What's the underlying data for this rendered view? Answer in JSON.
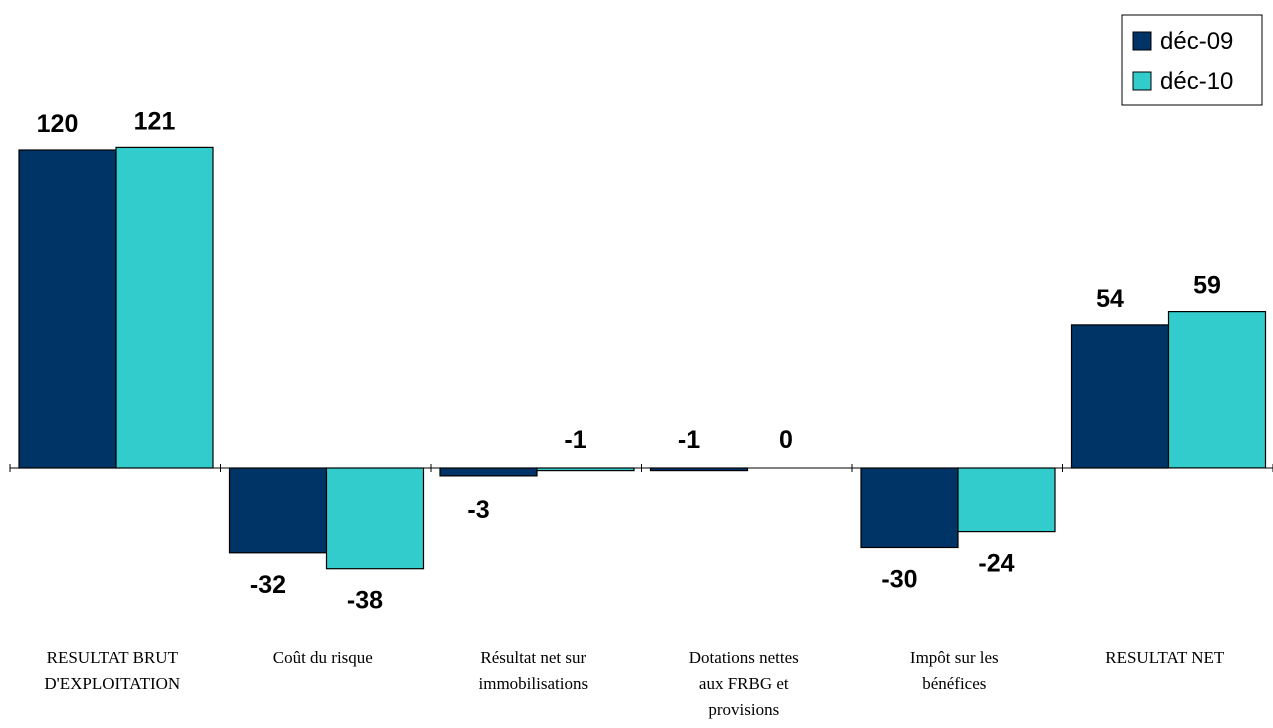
{
  "chart_data": {
    "type": "bar",
    "categories": [
      [
        "RESULTAT BRUT",
        "D'EXPLOITATION"
      ],
      [
        "Coût du risque"
      ],
      [
        "Résultat net sur",
        "immobilisations"
      ],
      [
        "Dotations nettes",
        "aux FRBG et",
        "provisions"
      ],
      [
        "Impôt sur les",
        "bénéfices"
      ],
      [
        "RESULTAT NET"
      ]
    ],
    "series": [
      {
        "name": "déc-09",
        "values": [
          120,
          -32,
          -3,
          -1,
          -30,
          54
        ],
        "color": "#003366"
      },
      {
        "name": "déc-10",
        "values": [
          121,
          -38,
          -1,
          0,
          -24,
          59
        ],
        "color": "#33CCCC"
      }
    ],
    "legend_position": "top-right",
    "grid": false
  }
}
